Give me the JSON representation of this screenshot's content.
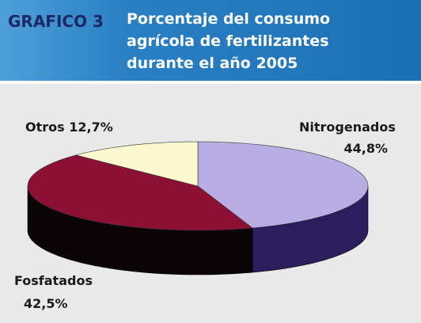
{
  "chart_data": {
    "type": "pie3d",
    "label": "GRAFICO 3",
    "title": [
      "Porcentaje del consumo",
      "agrícola de fertilizantes",
      "durante el año 2005"
    ],
    "categories": [
      "Nitrogenados",
      "Fosfatados",
      "Otros"
    ],
    "values": [
      44.8,
      42.5,
      12.7
    ],
    "value_labels": [
      "44,8%",
      "42,5%",
      "12,7%"
    ],
    "colors": [
      "#b9aee3",
      "#8c1034",
      "#fdf9cf"
    ],
    "side_colors": [
      "#2b1d5e",
      "#0c0508",
      "#bdb88e"
    ]
  }
}
